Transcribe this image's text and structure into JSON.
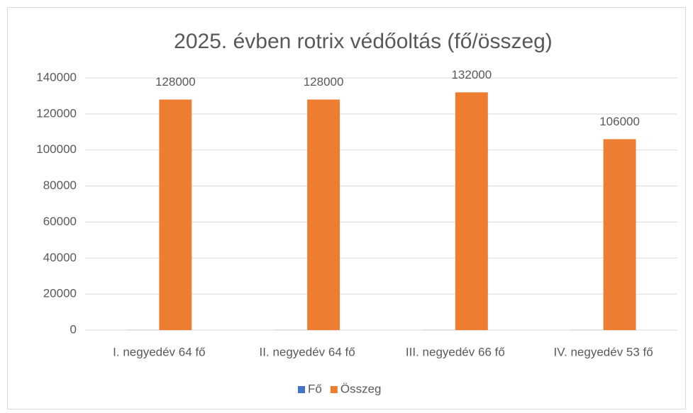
{
  "chart_data": {
    "type": "bar",
    "title": "2025. évben rotrix védőoltás (fő/összeg)",
    "categories": [
      "I. negyedév 64 fő",
      "II. negyedév 64 fő",
      "III. negyedév 66 fő",
      "IV. negyedév 53 fő"
    ],
    "series": [
      {
        "name": "Fő",
        "color": "#4472c4",
        "values": [
          64,
          64,
          66,
          53
        ],
        "data_labels": false
      },
      {
        "name": "Összeg",
        "color": "#ed7d31",
        "values": [
          128000,
          128000,
          132000,
          106000
        ],
        "data_labels": true
      }
    ],
    "ylim": [
      0,
      140000
    ],
    "yticks": [
      0,
      20000,
      40000,
      60000,
      80000,
      100000,
      120000,
      140000
    ],
    "grid": true,
    "legend": "bottom"
  }
}
